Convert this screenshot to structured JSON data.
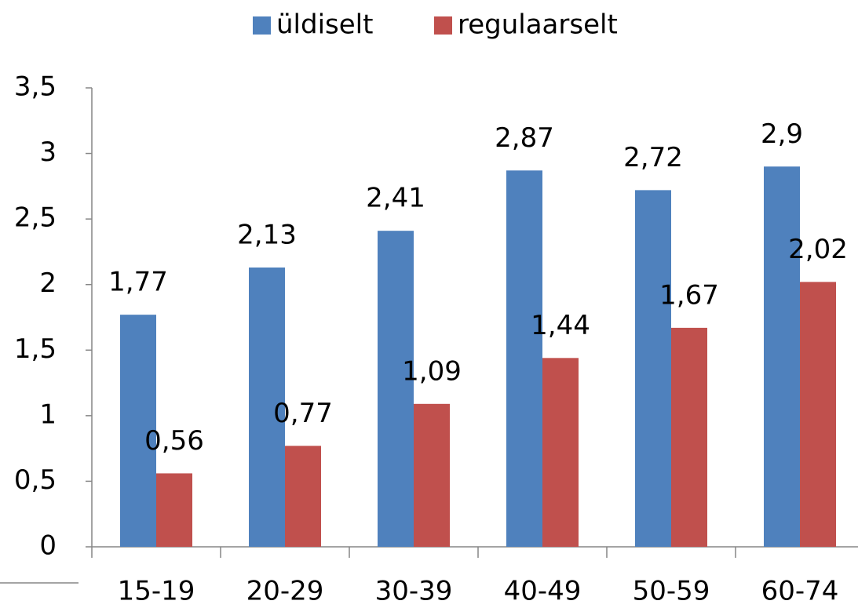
{
  "chart_data": {
    "type": "bar",
    "categories": [
      "15-19",
      "20-29",
      "30-39",
      "40-49",
      "50-59",
      "60-74"
    ],
    "series": [
      {
        "name": "üldiselt",
        "color": "#4f81bd",
        "values": [
          1.77,
          2.13,
          2.41,
          2.87,
          2.72,
          2.9
        ],
        "value_labels": [
          "1,77",
          "2,13",
          "2,41",
          "2,87",
          "2,72",
          "2,9"
        ]
      },
      {
        "name": "regulaarselt",
        "color": "#c0504d",
        "values": [
          0.56,
          0.77,
          1.09,
          1.44,
          1.67,
          2.02
        ],
        "value_labels": [
          "0,56",
          "0,77",
          "1,09",
          "1,44",
          "1,67",
          "2,02"
        ]
      }
    ],
    "ylim": [
      0,
      3.5
    ],
    "yticks": [
      0,
      {
        "value": 0.5,
        "label": "0,5"
      },
      1,
      {
        "value": 1.5,
        "label": "1,5"
      },
      2,
      {
        "value": 2.5,
        "label": "2,5"
      },
      3,
      {
        "value": 3.5,
        "label": "3,5"
      }
    ],
    "legend": "top",
    "grid": false
  }
}
